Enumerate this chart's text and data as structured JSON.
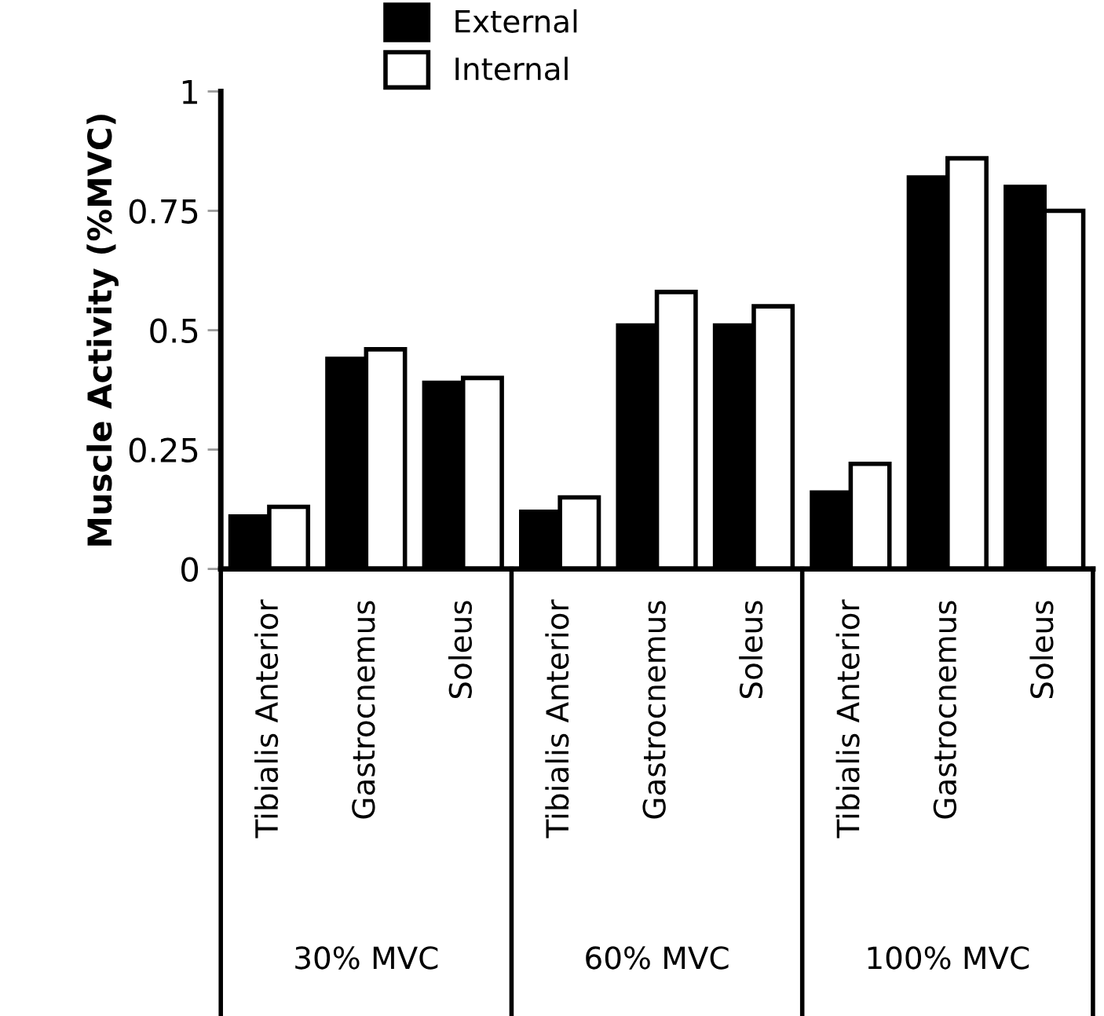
{
  "chart_data": {
    "type": "bar",
    "ylabel": "Muscle Activity (%MVC)",
    "categories": [
      "Tibialis Anterior",
      "Gastrocnemus",
      "Soleus",
      "Tibialis Anterior",
      "Gastrocnemus",
      "Soleus",
      "Tibialis Anterior",
      "Gastrocnemus",
      "Soleus"
    ],
    "series": [
      {
        "name": "External",
        "color": "#000000",
        "values": [
          0.11,
          0.44,
          0.39,
          0.12,
          0.51,
          0.51,
          0.16,
          0.82,
          0.8
        ]
      },
      {
        "name": "Internal",
        "color": "#ffffff",
        "values": [
          0.13,
          0.46,
          0.4,
          0.15,
          0.58,
          0.55,
          0.22,
          0.86,
          0.75
        ]
      }
    ],
    "annotations": [
      "30% MVC",
      "60% MVC",
      "100% MVC"
    ],
    "ylim": [
      0,
      1
    ],
    "yticks": [
      0,
      0.25,
      0.5,
      0.75,
      1
    ],
    "legend": "top",
    "grid": false
  }
}
